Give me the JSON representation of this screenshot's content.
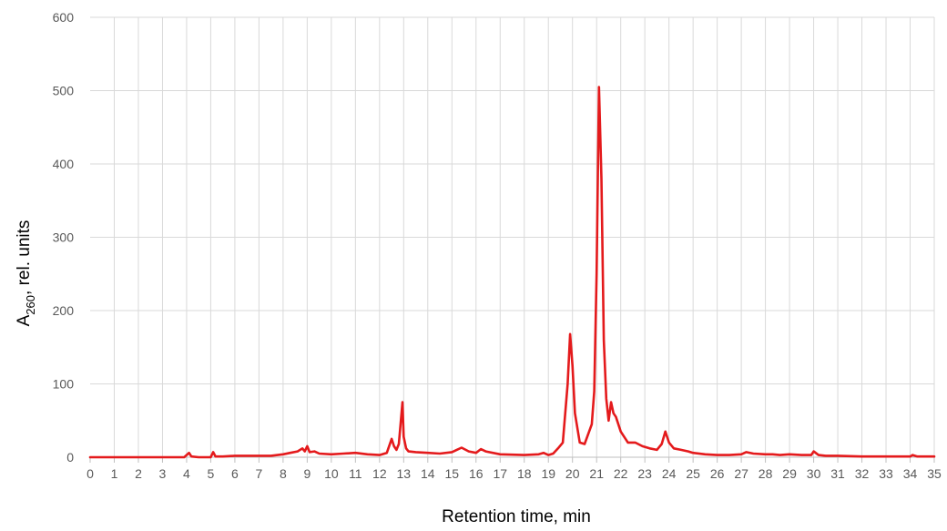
{
  "chart_data": {
    "type": "line",
    "xlabel": "Retention time, min",
    "ylabel": {
      "main": "A",
      "subscript": "260",
      "suffix": ", rel. units"
    },
    "xlim": [
      0,
      35
    ],
    "ylim": [
      0,
      600
    ],
    "x_ticks": [
      "0",
      "1",
      "2",
      "3",
      "4",
      "5",
      "6",
      "7",
      "8",
      "9",
      "10",
      "11",
      "12",
      "13",
      "14",
      "15",
      "16",
      "17",
      "18",
      "19",
      "20",
      "21",
      "22",
      "23",
      "24",
      "25",
      "26",
      "27",
      "28",
      "29",
      "30",
      "31",
      "32",
      "33",
      "34",
      "35"
    ],
    "y_ticks": [
      "0",
      "100",
      "200",
      "300",
      "400",
      "500",
      "600"
    ],
    "grid": true,
    "legend": "none",
    "colors": {
      "line": "#e41a1c",
      "grid": "#d9d9d9",
      "axis": "#bfbfbf",
      "tick_text": "#595959"
    },
    "series": [
      {
        "x": [
          0,
          1,
          2,
          3,
          3.9,
          4.1,
          4.2,
          4.5,
          5,
          5.1,
          5.2,
          5.5,
          6,
          6.5,
          7,
          7.5,
          8,
          8.3,
          8.6,
          8.8,
          8.9,
          9.0,
          9.1,
          9.3,
          9.5,
          10,
          10.5,
          11,
          11.5,
          12,
          12.3,
          12.5,
          12.6,
          12.7,
          12.8,
          12.95,
          13.0,
          13.1,
          13.2,
          13.5,
          14,
          14.5,
          15,
          15.2,
          15.4,
          15.7,
          16,
          16.2,
          16.4,
          17,
          18,
          18.6,
          18.8,
          19.0,
          19.2,
          19.4,
          19.6,
          19.8,
          19.9,
          20.0,
          20.1,
          20.3,
          20.5,
          20.8,
          20.9,
          21.0,
          21.1,
          21.2,
          21.3,
          21.4,
          21.5,
          21.6,
          21.7,
          21.8,
          22.0,
          22.3,
          22.6,
          22.9,
          23.2,
          23.5,
          23.7,
          23.85,
          24.0,
          24.2,
          24.5,
          24.8,
          25,
          25.5,
          26,
          26.5,
          27,
          27.2,
          27.5,
          28,
          28.3,
          28.6,
          29,
          29.5,
          29.9,
          30.0,
          30.2,
          30.5,
          31,
          32,
          33,
          34,
          34.1,
          34.3,
          35
        ],
        "y": [
          0,
          0,
          0,
          0,
          0,
          6,
          1,
          0,
          0,
          7,
          1,
          1,
          2,
          2,
          2,
          2,
          4,
          6,
          8,
          12,
          8,
          15,
          7,
          8,
          5,
          4,
          5,
          6,
          4,
          3,
          6,
          25,
          15,
          10,
          18,
          75,
          28,
          12,
          8,
          7,
          6,
          5,
          7,
          10,
          13,
          8,
          6,
          11,
          8,
          4,
          3,
          4,
          6,
          3,
          5,
          12,
          20,
          100,
          168,
          125,
          60,
          20,
          18,
          45,
          90,
          250,
          505,
          380,
          160,
          80,
          50,
          75,
          60,
          55,
          35,
          20,
          20,
          15,
          12,
          10,
          18,
          35,
          20,
          12,
          10,
          8,
          6,
          4,
          3,
          3,
          4,
          7,
          5,
          4,
          4,
          3,
          4,
          3,
          3,
          8,
          3,
          2,
          2,
          1,
          1,
          1,
          3,
          1,
          1
        ]
      }
    ]
  }
}
